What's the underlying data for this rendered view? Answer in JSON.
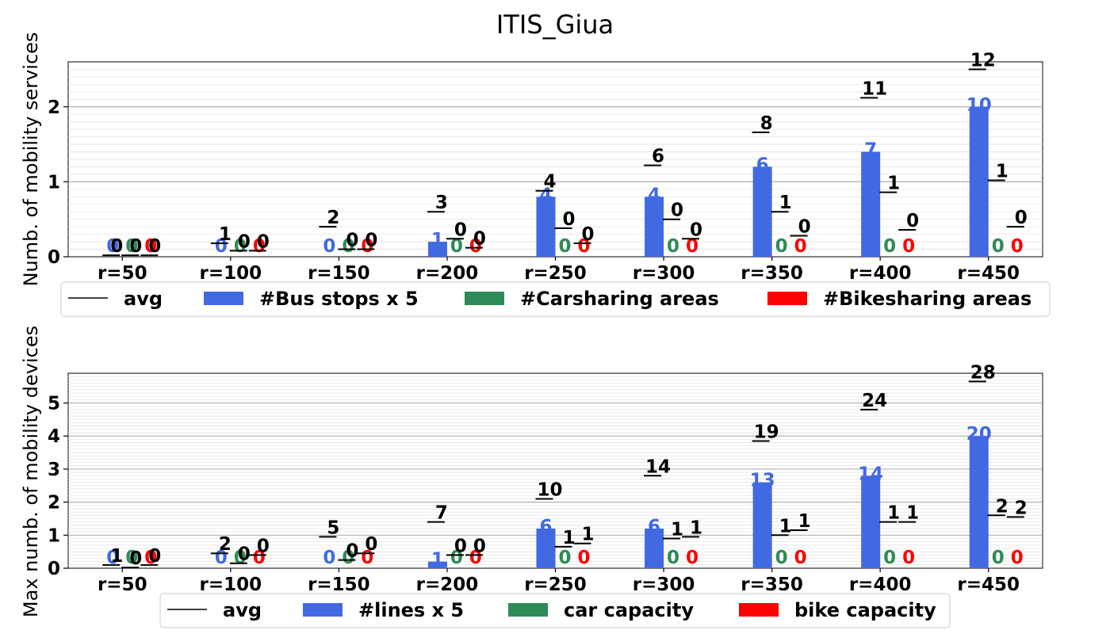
{
  "chart_data": [
    {
      "type": "bar",
      "title": "ITIS_Giua",
      "ylabel": "Numb. of mobility services",
      "categories": [
        "r=50",
        "r=100",
        "r=150",
        "r=200",
        "r=250",
        "r=300",
        "r=350",
        "r=400",
        "r=450"
      ],
      "ylim": [
        0,
        2.6
      ],
      "yticks": [
        0,
        1,
        2
      ],
      "grid": true,
      "legend_position": "bottom",
      "avg_label": "avg",
      "series": [
        {
          "name": "#Bus stops x 5",
          "color": "#4169e1",
          "values": [
            0,
            0,
            0,
            0.2,
            0.8,
            0.8,
            1.2,
            1.4,
            2.0
          ],
          "labels": [
            "0",
            "0",
            "0",
            "1",
            "4",
            "4",
            "6",
            "7",
            "10"
          ],
          "avg": [
            0.02,
            0.18,
            0.4,
            0.6,
            0.88,
            1.22,
            1.66,
            2.12,
            2.5
          ],
          "avg_labels": [
            "0",
            "1",
            "2",
            "3",
            "4",
            "6",
            "8",
            "11",
            "12"
          ]
        },
        {
          "name": "#Carsharing areas",
          "color": "#2e8b57",
          "values": [
            0,
            0,
            0,
            0,
            0,
            0,
            0,
            0,
            0
          ],
          "labels": [
            "0",
            "0",
            "0",
            "0",
            "0",
            "0",
            "0",
            "0",
            "0"
          ],
          "avg": [
            0.02,
            0.08,
            0.1,
            0.24,
            0.38,
            0.5,
            0.6,
            0.86,
            1.02
          ],
          "avg_labels": [
            "0",
            "0",
            "0",
            "0",
            "0",
            "0",
            "1",
            "1",
            "1"
          ]
        },
        {
          "name": "#Bikesharing areas",
          "color": "#ff0000",
          "values": [
            0,
            0,
            0,
            0,
            0,
            0,
            0,
            0,
            0
          ],
          "labels": [
            "0",
            "0",
            "0",
            "0",
            "0",
            "0",
            "0",
            "0",
            "0"
          ],
          "avg": [
            0.02,
            0.08,
            0.1,
            0.12,
            0.18,
            0.24,
            0.28,
            0.36,
            0.4
          ],
          "avg_labels": [
            "0",
            "0",
            "0",
            "0",
            "0",
            "0",
            "0",
            "0",
            "0"
          ]
        }
      ]
    },
    {
      "type": "bar",
      "ylabel": "Max numb. of mobility devices",
      "categories": [
        "r=50",
        "r=100",
        "r=150",
        "r=200",
        "r=250",
        "r=300",
        "r=350",
        "r=400",
        "r=450"
      ],
      "ylim": [
        0,
        5.9
      ],
      "yticks": [
        0,
        1,
        2,
        3,
        4,
        5
      ],
      "grid": true,
      "legend_position": "bottom",
      "avg_label": "avg",
      "series": [
        {
          "name": "#lines x 5",
          "color": "#4169e1",
          "values": [
            0,
            0,
            0,
            0.2,
            1.2,
            1.2,
            2.6,
            2.8,
            4.0
          ],
          "labels": [
            "0",
            "0",
            "0",
            "1",
            "6",
            "6",
            "13",
            "14",
            "20"
          ],
          "avg": [
            0.1,
            0.45,
            0.95,
            1.4,
            2.1,
            2.8,
            3.85,
            4.8,
            5.65
          ],
          "avg_labels": [
            "1",
            "2",
            "5",
            "7",
            "10",
            "14",
            "19",
            "24",
            "28"
          ]
        },
        {
          "name": "car capacity",
          "color": "#2e8b57",
          "values": [
            0,
            0,
            0,
            0,
            0,
            0,
            0,
            0,
            0
          ],
          "labels": [
            "0",
            "0",
            "0",
            "0",
            "0",
            "0",
            "0",
            "0",
            "0"
          ],
          "avg": [
            0.02,
            0.15,
            0.25,
            0.4,
            0.65,
            0.9,
            1.0,
            1.4,
            1.6
          ],
          "avg_labels": [
            "0",
            "0",
            "0",
            "0",
            "1",
            "1",
            "1",
            "1",
            "2"
          ]
        },
        {
          "name": "bike capacity",
          "color": "#ff0000",
          "values": [
            0,
            0,
            0,
            0,
            0,
            0,
            0,
            0,
            0
          ],
          "labels": [
            "0",
            "0",
            "0",
            "0",
            "0",
            "0",
            "0",
            "0",
            "0"
          ],
          "avg": [
            0.1,
            0.4,
            0.45,
            0.4,
            0.75,
            0.95,
            1.15,
            1.4,
            1.55
          ],
          "avg_labels": [
            "0",
            "0",
            "0",
            "0",
            "1",
            "1",
            "1",
            "1",
            "2"
          ]
        }
      ]
    }
  ]
}
